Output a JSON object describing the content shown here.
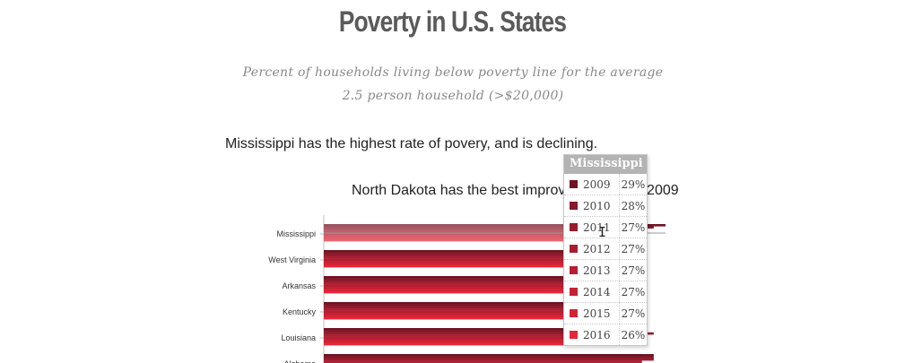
{
  "header": {
    "title": "Poverty in U.S. States",
    "subtitle": "Percent of households living below poverty line for the average 2.5 person household (>$20,000)"
  },
  "annotations": {
    "note_1": "Mississippi has the highest rate of povery, and is declining.",
    "note_2": "North Dakota has the best improvement since 2009"
  },
  "chart_data": {
    "type": "bar",
    "orientation": "horizontal",
    "categories": [
      "Mississippi",
      "West Virginia",
      "Arkansas",
      "Kentucky",
      "Louisiana",
      "Alabama"
    ],
    "series": [
      {
        "name": "2009",
        "color": "#6e1423",
        "values": [
          29,
          27,
          26,
          27,
          27,
          28
        ]
      },
      {
        "name": "2010",
        "color": "#851a2a",
        "values": [
          28,
          27,
          26,
          27,
          27,
          28
        ]
      },
      {
        "name": "2011",
        "color": "#971c2e",
        "values": [
          27,
          27,
          26,
          27,
          28,
          28
        ]
      },
      {
        "name": "2012",
        "color": "#a81e30",
        "values": [
          27,
          27,
          26,
          27,
          27,
          27
        ]
      },
      {
        "name": "2013",
        "color": "#b71e32",
        "values": [
          27,
          27,
          26,
          26,
          27,
          27
        ]
      },
      {
        "name": "2014",
        "color": "#c52033",
        "values": [
          27,
          27,
          26,
          26,
          27,
          27
        ]
      },
      {
        "name": "2015",
        "color": "#d42335",
        "values": [
          27,
          26,
          26,
          26,
          26,
          27
        ]
      },
      {
        "name": "2016",
        "color": "#e5273a",
        "values": [
          26,
          26,
          26,
          26,
          26,
          27
        ]
      }
    ],
    "xlim": [
      0,
      29
    ],
    "highlighted_category": "Mississippi"
  },
  "tooltip": {
    "title": "Mississippi",
    "rows": [
      {
        "year": "2009",
        "value": "29%",
        "color": "#6e1423"
      },
      {
        "year": "2010",
        "value": "28%",
        "color": "#851a2a"
      },
      {
        "year": "2011",
        "value": "27%",
        "color": "#971c2e"
      },
      {
        "year": "2012",
        "value": "27%",
        "color": "#a81e30"
      },
      {
        "year": "2013",
        "value": "27%",
        "color": "#b71e32"
      },
      {
        "year": "2014",
        "value": "27%",
        "color": "#c52033"
      },
      {
        "year": "2015",
        "value": "27%",
        "color": "#d42335"
      },
      {
        "year": "2016",
        "value": "26%",
        "color": "#e5273a"
      }
    ]
  },
  "cursor": {
    "icon": "text-cursor-icon",
    "glyph": "I"
  }
}
